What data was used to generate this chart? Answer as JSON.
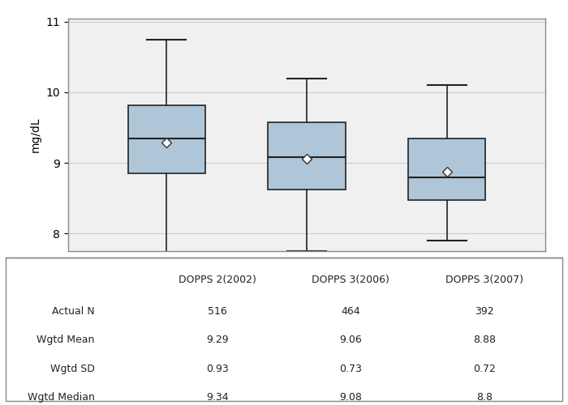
{
  "categories": [
    "DOPPS 2(2002)",
    "DOPPS 3(2006)",
    "DOPPS 3(2007)"
  ],
  "boxes": [
    {
      "q1": 8.85,
      "median": 9.34,
      "q3": 9.82,
      "whislo": 7.55,
      "whishi": 10.75,
      "mean": 9.29
    },
    {
      "q1": 8.62,
      "median": 9.08,
      "q3": 9.58,
      "whislo": 7.75,
      "whishi": 10.2,
      "mean": 9.06
    },
    {
      "q1": 8.47,
      "median": 8.8,
      "q3": 9.35,
      "whislo": 7.9,
      "whishi": 10.1,
      "mean": 8.88
    }
  ],
  "table_rows": [
    {
      "label": "Actual N",
      "values": [
        "516",
        "464",
        "392"
      ]
    },
    {
      "label": "Wgtd Mean",
      "values": [
        "9.29",
        "9.06",
        "8.88"
      ]
    },
    {
      "label": "Wgtd SD",
      "values": [
        "0.93",
        "0.73",
        "0.72"
      ]
    },
    {
      "label": "Wgtd Median",
      "values": [
        "9.34",
        "9.08",
        "8.8"
      ]
    }
  ],
  "ylabel": "mg/dL",
  "ylim": [
    7.75,
    11.05
  ],
  "yticks": [
    8,
    9,
    10,
    11
  ],
  "box_color": "#aec6d8",
  "box_edge_color": "#222222",
  "whisker_color": "#222222",
  "median_color": "#222222",
  "mean_marker": "D",
  "mean_marker_color": "white",
  "mean_marker_edge_color": "#333333",
  "grid_color": "#cccccc",
  "background_color": "#f0f0f0",
  "figure_bg": "#ffffff",
  "border_color": "#888888"
}
